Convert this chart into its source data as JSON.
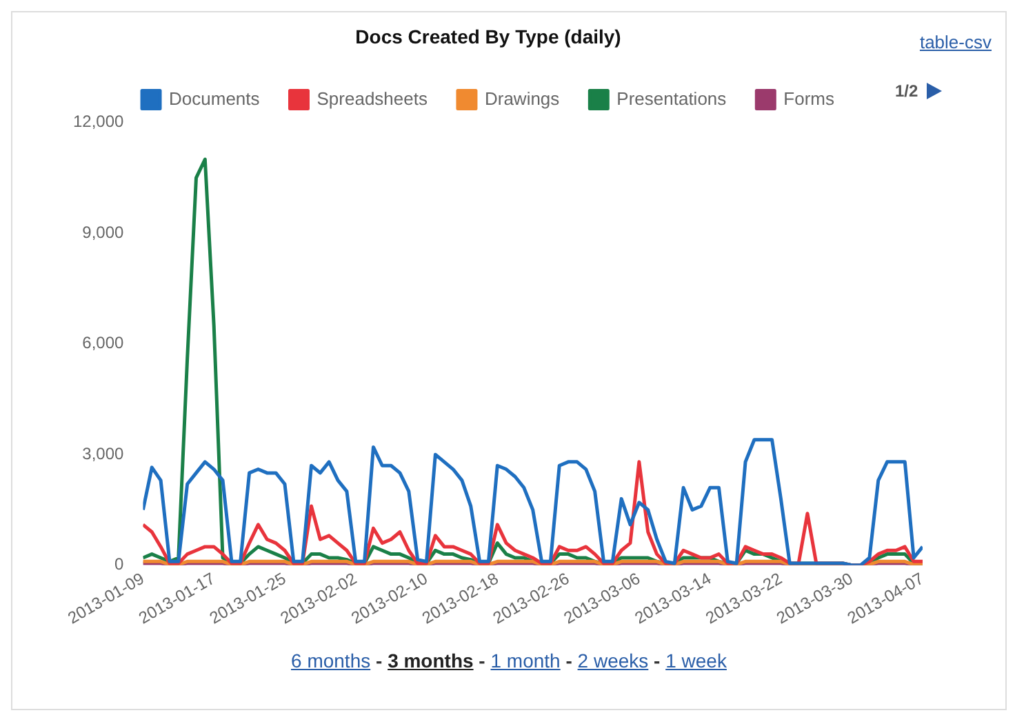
{
  "chart_data": {
    "type": "line",
    "title": "Docs Created By Type (daily)",
    "x": [
      "2013-01-09",
      "2013-01-10",
      "2013-01-11",
      "2013-01-12",
      "2013-01-13",
      "2013-01-14",
      "2013-01-15",
      "2013-01-16",
      "2013-01-17",
      "2013-01-18",
      "2013-01-19",
      "2013-01-20",
      "2013-01-21",
      "2013-01-22",
      "2013-01-23",
      "2013-01-24",
      "2013-01-25",
      "2013-01-26",
      "2013-01-27",
      "2013-01-28",
      "2013-01-29",
      "2013-01-30",
      "2013-01-31",
      "2013-02-01",
      "2013-02-02",
      "2013-02-03",
      "2013-02-04",
      "2013-02-05",
      "2013-02-06",
      "2013-02-07",
      "2013-02-08",
      "2013-02-09",
      "2013-02-10",
      "2013-02-11",
      "2013-02-12",
      "2013-02-13",
      "2013-02-14",
      "2013-02-15",
      "2013-02-16",
      "2013-02-17",
      "2013-02-18",
      "2013-02-19",
      "2013-02-20",
      "2013-02-21",
      "2013-02-22",
      "2013-02-23",
      "2013-02-24",
      "2013-02-25",
      "2013-02-26",
      "2013-02-27",
      "2013-02-28",
      "2013-03-01",
      "2013-03-02",
      "2013-03-03",
      "2013-03-04",
      "2013-03-05",
      "2013-03-06",
      "2013-03-07",
      "2013-03-08",
      "2013-03-09",
      "2013-03-10",
      "2013-03-11",
      "2013-03-12",
      "2013-03-13",
      "2013-03-14",
      "2013-03-15",
      "2013-03-16",
      "2013-03-17",
      "2013-03-18",
      "2013-03-19",
      "2013-03-20",
      "2013-03-21",
      "2013-03-22",
      "2013-03-23",
      "2013-03-24",
      "2013-03-25",
      "2013-03-26",
      "2013-03-27",
      "2013-03-28",
      "2013-03-29",
      "2013-03-30",
      "2013-03-31",
      "2013-04-01",
      "2013-04-02",
      "2013-04-03",
      "2013-04-04",
      "2013-04-05",
      "2013-04-06",
      "2013-04-07"
    ],
    "series": [
      {
        "name": "Documents",
        "color": "#1f6fc0",
        "values": [
          1500,
          2650,
          2300,
          100,
          100,
          2200,
          2500,
          2800,
          2600,
          2300,
          100,
          100,
          2500,
          2600,
          2500,
          2500,
          2200,
          100,
          100,
          2700,
          2500,
          2800,
          2300,
          2000,
          100,
          100,
          3200,
          2700,
          2700,
          2500,
          2000,
          150,
          100,
          3000,
          2800,
          2600,
          2300,
          1600,
          100,
          100,
          2700,
          2600,
          2400,
          2100,
          1500,
          100,
          100,
          2700,
          2800,
          2800,
          2600,
          2000,
          100,
          100,
          1800,
          1100,
          1700,
          1500,
          700,
          100,
          50,
          2100,
          1500,
          1600,
          2100,
          2100,
          100,
          50,
          2800,
          3400,
          3400,
          3400,
          1800,
          50,
          50,
          50,
          50,
          50,
          50,
          50,
          0,
          0,
          200,
          2300,
          2800,
          2800,
          2800,
          200,
          500
        ]
      },
      {
        "name": "Spreadsheets",
        "color": "#e8343c",
        "values": [
          1100,
          900,
          500,
          50,
          50,
          300,
          400,
          500,
          500,
          300,
          50,
          50,
          600,
          1100,
          700,
          600,
          400,
          50,
          50,
          1600,
          700,
          800,
          600,
          400,
          50,
          50,
          1000,
          600,
          700,
          900,
          400,
          50,
          50,
          800,
          500,
          500,
          400,
          300,
          50,
          50,
          1100,
          600,
          400,
          300,
          200,
          50,
          50,
          500,
          400,
          400,
          500,
          300,
          50,
          50,
          400,
          600,
          2800,
          900,
          300,
          50,
          50,
          400,
          300,
          200,
          200,
          300,
          50,
          50,
          500,
          400,
          300,
          300,
          200,
          50,
          50,
          1400,
          50,
          50,
          50,
          50,
          0,
          0,
          100,
          300,
          400,
          400,
          500,
          100,
          100
        ]
      },
      {
        "name": "Drawings",
        "color": "#f08a30",
        "values": [
          100,
          100,
          100,
          20,
          20,
          100,
          100,
          100,
          100,
          100,
          20,
          20,
          100,
          100,
          100,
          100,
          100,
          20,
          20,
          100,
          100,
          100,
          100,
          100,
          20,
          20,
          100,
          100,
          100,
          100,
          100,
          20,
          20,
          100,
          100,
          100,
          100,
          100,
          20,
          20,
          100,
          100,
          100,
          100,
          100,
          20,
          20,
          100,
          100,
          100,
          100,
          100,
          20,
          20,
          100,
          100,
          100,
          100,
          100,
          20,
          20,
          100,
          100,
          100,
          100,
          100,
          20,
          20,
          100,
          100,
          100,
          100,
          100,
          20,
          20,
          20,
          20,
          20,
          20,
          20,
          0,
          0,
          20,
          100,
          100,
          100,
          100,
          20,
          20
        ]
      },
      {
        "name": "Presentations",
        "color": "#1a8048",
        "values": [
          200,
          300,
          200,
          100,
          200,
          5600,
          10500,
          11000,
          6500,
          200,
          50,
          50,
          300,
          500,
          400,
          300,
          200,
          50,
          50,
          300,
          300,
          200,
          200,
          150,
          50,
          50,
          500,
          400,
          300,
          300,
          200,
          50,
          50,
          400,
          300,
          300,
          200,
          150,
          50,
          50,
          600,
          300,
          200,
          200,
          100,
          50,
          50,
          300,
          300,
          200,
          200,
          100,
          50,
          50,
          200,
          200,
          200,
          200,
          100,
          50,
          50,
          200,
          200,
          200,
          200,
          100,
          50,
          50,
          400,
          300,
          300,
          200,
          100,
          50,
          50,
          50,
          50,
          50,
          50,
          50,
          0,
          0,
          50,
          200,
          300,
          300,
          300,
          50,
          50
        ]
      },
      {
        "name": "Forms",
        "color": "#9b3a6c",
        "values": [
          50,
          50,
          50,
          10,
          10,
          50,
          50,
          50,
          50,
          50,
          10,
          10,
          50,
          50,
          50,
          50,
          50,
          10,
          10,
          50,
          50,
          50,
          50,
          50,
          10,
          10,
          50,
          50,
          50,
          50,
          50,
          10,
          10,
          50,
          50,
          50,
          50,
          50,
          10,
          10,
          50,
          50,
          50,
          50,
          50,
          10,
          10,
          50,
          50,
          50,
          50,
          50,
          10,
          10,
          50,
          50,
          50,
          50,
          50,
          10,
          10,
          50,
          50,
          50,
          50,
          50,
          10,
          10,
          50,
          50,
          50,
          50,
          50,
          10,
          10,
          10,
          10,
          10,
          10,
          10,
          0,
          0,
          10,
          50,
          50,
          50,
          50,
          10,
          10
        ]
      }
    ],
    "xlim": [
      "2013-01-09",
      "2013-04-07"
    ],
    "xticks": [
      "2013-01-09",
      "2013-01-17",
      "2013-01-25",
      "2013-02-02",
      "2013-02-10",
      "2013-02-18",
      "2013-02-26",
      "2013-03-06",
      "2013-03-14",
      "2013-03-22",
      "2013-03-30",
      "2013-04-07"
    ],
    "ylim": [
      0,
      12000
    ],
    "yticks": [
      {
        "value": 0,
        "label": "0"
      },
      {
        "value": 3000,
        "label": "3,000"
      },
      {
        "value": 6000,
        "label": "6,000"
      },
      {
        "value": 9000,
        "label": "9,000"
      },
      {
        "value": 12000,
        "label": "12,000"
      }
    ],
    "grid": false,
    "legend": "top",
    "marker": "none",
    "line_style": "solid",
    "annotations": [
      "table-csv",
      "1/2",
      "6 months - 3 months - 1 month - 2 weeks - 1 week"
    ]
  }
}
